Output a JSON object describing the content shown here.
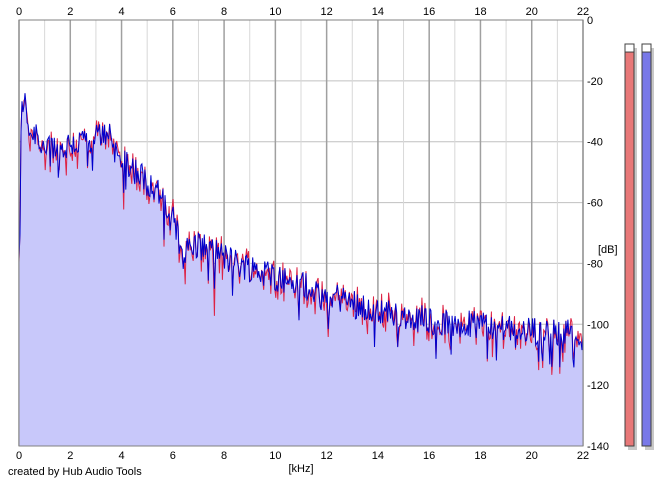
{
  "credit": "created by Hub Audio Tools",
  "chart_data": {
    "type": "area",
    "xlabel": "[kHz]",
    "ylabel": "[dB]",
    "xlim": [
      0,
      22
    ],
    "ylim": [
      -140,
      0
    ],
    "x_ticks": [
      "0",
      "2",
      "4",
      "6",
      "8",
      "10",
      "12",
      "14",
      "16",
      "18",
      "20",
      "22"
    ],
    "y_ticks": [
      "0",
      "-20",
      "-40",
      "-60",
      "-80",
      "-100",
      "-120",
      "-140"
    ],
    "grid": true,
    "series": [
      {
        "color": "#0000cc",
        "fill": "#c8c8fa",
        "x": [
          0.0,
          0.1,
          0.2,
          0.3,
          0.5,
          0.7,
          0.9,
          1.2,
          1.5,
          1.8,
          2.0,
          2.3,
          2.6,
          2.9,
          3.2,
          3.5,
          3.8,
          4.0,
          4.3,
          4.6,
          5.0,
          5.4,
          5.8,
          6.0,
          6.2,
          6.4,
          6.6,
          7.0,
          7.5,
          8.0,
          8.5,
          9.0,
          9.5,
          10.0,
          10.5,
          11.0,
          11.5,
          12.0,
          12.5,
          13.0,
          13.5,
          14.0,
          14.5,
          15.0,
          15.5,
          16.0,
          16.5,
          17.0,
          17.5,
          18.0,
          18.5,
          19.0,
          19.5,
          20.0,
          20.5,
          21.0,
          21.5,
          22.0
        ],
        "values": [
          -80,
          -30,
          -25,
          -32,
          -38,
          -36,
          -42,
          -40,
          -43,
          -42,
          -40,
          -41,
          -38,
          -39,
          -38,
          -36,
          -44,
          -45,
          -47,
          -50,
          -53,
          -56,
          -61,
          -63,
          -70,
          -77,
          -75,
          -74,
          -75,
          -78,
          -80,
          -81,
          -83,
          -84,
          -86,
          -87,
          -88,
          -92,
          -91,
          -93,
          -94,
          -95,
          -96,
          -97,
          -97,
          -98,
          -100,
          -99,
          -99,
          -100,
          -101,
          -100,
          -101,
          -102,
          -102,
          -103,
          -102,
          -104
        ]
      }
    ]
  },
  "meters": [
    {
      "color": "#e87878",
      "level": 0.98
    },
    {
      "color": "#7878e8",
      "level": 0.98
    }
  ]
}
